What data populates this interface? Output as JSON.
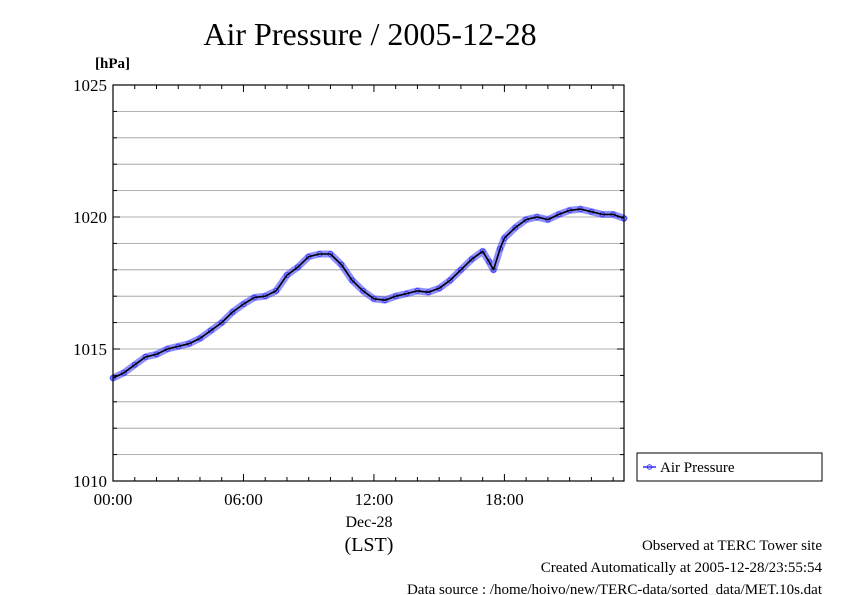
{
  "chart_data": {
    "type": "line",
    "title": "Air Pressure / 2005-12-28",
    "ylabel": "[hPa]",
    "xlabel": "(LST)",
    "ylim": [
      1010,
      1025
    ],
    "yticks": [
      1010,
      1015,
      1020,
      1025
    ],
    "xlim": [
      0,
      23.5
    ],
    "xticks": [
      {
        "value": 0,
        "label": "00:00"
      },
      {
        "value": 6,
        "label": "06:00"
      },
      {
        "value": 12,
        "label": "12:00"
      },
      {
        "value": 18,
        "label": "18:00"
      }
    ],
    "date_label": "Dec-28",
    "grid": true,
    "legend_position": "right",
    "series": [
      {
        "name": "Air Pressure",
        "color": "#3333ff",
        "x": [
          0.0,
          0.5,
          1.0,
          1.5,
          2.0,
          2.5,
          3.0,
          3.5,
          4.0,
          4.5,
          5.0,
          5.5,
          6.0,
          6.5,
          7.0,
          7.5,
          8.0,
          8.5,
          9.0,
          9.5,
          10.0,
          10.5,
          11.0,
          11.5,
          12.0,
          12.5,
          13.0,
          13.5,
          14.0,
          14.5,
          15.0,
          15.5,
          16.0,
          16.5,
          17.0,
          17.3,
          17.5,
          17.8,
          18.0,
          18.5,
          19.0,
          19.5,
          20.0,
          20.5,
          21.0,
          21.5,
          22.0,
          22.5,
          23.0,
          23.5
        ],
        "values": [
          1013.9,
          1014.1,
          1014.4,
          1014.7,
          1014.8,
          1015.0,
          1015.1,
          1015.2,
          1015.4,
          1015.7,
          1016.0,
          1016.4,
          1016.7,
          1016.95,
          1017.0,
          1017.2,
          1017.8,
          1018.1,
          1018.5,
          1018.6,
          1018.6,
          1018.2,
          1017.6,
          1017.2,
          1016.9,
          1016.85,
          1017.0,
          1017.1,
          1017.2,
          1017.15,
          1017.3,
          1017.6,
          1018.0,
          1018.4,
          1018.7,
          1018.3,
          1018.0,
          1018.8,
          1019.2,
          1019.6,
          1019.9,
          1020.0,
          1019.9,
          1020.1,
          1020.25,
          1020.3,
          1020.2,
          1020.1,
          1020.1,
          1019.95
        ]
      }
    ]
  },
  "footer": {
    "line1": "Observed at TERC Tower site",
    "line2": "Created Automatically at 2005-12-28/23:55:54",
    "line3": "Data source : /home/hoivo/new/TERC-data/sorted_data/MET.10s.dat"
  },
  "colors": {
    "series": "#3333ff",
    "line_dark": "#000000",
    "grid": "#999999",
    "frame": "#000000"
  }
}
